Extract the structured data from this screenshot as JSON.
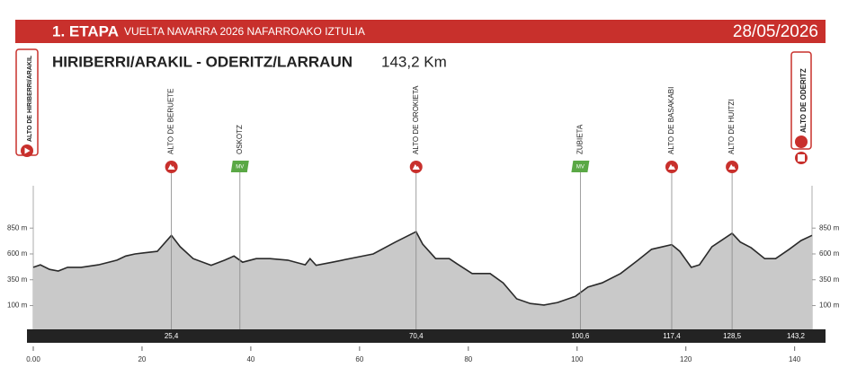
{
  "chart_data": {
    "type": "area",
    "header": {
      "stage": "1. ETAPA",
      "race": "VUELTA NAVARRA 2026 NAFARROAKO IZTULIA",
      "date": "28/05/2026"
    },
    "title": "HIRIBERRI/ARAKIL - ODERITZ/LARRAUN",
    "distance": "143,2 Km",
    "start": {
      "name": "ALTO DE HIRIBERRI/ARAKIL"
    },
    "finish": {
      "name": "ALTO DE ODERITZ",
      "km": 143.2,
      "km_label": "143,2"
    },
    "points": [
      {
        "name": "ALTO DE BERUETE",
        "km": 25.4,
        "km_label": "25,4"
      },
      {
        "name": "OSKOTZ",
        "km": 38,
        "badge": "MV"
      },
      {
        "name": "ALTO DE OROKIETA",
        "km": 70.4,
        "km_label": "70,4"
      },
      {
        "name": "ZUBIETA",
        "km": 100.6,
        "km_label": "100,6",
        "badge": "MV"
      },
      {
        "name": "ALTO DE BASAKABI",
        "km": 117.4,
        "km_label": "117,4"
      },
      {
        "name": "ALTO DE HUITZI",
        "km": 128.5,
        "km_label": "128,5"
      }
    ],
    "x": [
      0,
      1.3,
      3,
      4.6,
      6.3,
      8.8,
      12,
      15.4,
      17,
      18.7,
      20.3,
      22.8,
      25.4,
      27,
      29.4,
      32.7,
      35.2,
      36.9,
      38.5,
      41,
      43.5,
      46.8,
      50,
      50.9,
      52,
      55,
      59.2,
      62.5,
      66.6,
      70.4,
      71.6,
      74,
      76.5,
      78.2,
      80.7,
      84,
      86.4,
      88.9,
      91.4,
      93.9,
      96.4,
      99.7,
      102,
      104.6,
      108,
      111.2,
      113.7,
      117.4,
      118.9,
      121,
      122.5,
      124.8,
      128.5,
      130,
      132,
      134.5,
      136.5,
      139,
      141.2,
      143.2
    ],
    "values": [
      470,
      495,
      450,
      435,
      470,
      470,
      495,
      540,
      580,
      600,
      610,
      625,
      780,
      670,
      555,
      490,
      540,
      580,
      520,
      555,
      555,
      540,
      495,
      555,
      490,
      520,
      565,
      600,
      715,
      815,
      695,
      555,
      555,
      495,
      410,
      410,
      320,
      165,
      120,
      105,
      130,
      190,
      280,
      320,
      410,
      540,
      645,
      690,
      625,
      470,
      495,
      670,
      800,
      715,
      660,
      555,
      555,
      645,
      730,
      780
    ],
    "color": "#c9c9c9",
    "xlim": [
      0,
      143.2
    ],
    "xticks": [
      {
        "value": 0,
        "label": "0.00"
      },
      20,
      40,
      60,
      80,
      100,
      120,
      140
    ],
    "ylim": [
      -130,
      1260
    ],
    "yticks": [
      {
        "value": 100,
        "label": "100 m"
      },
      {
        "value": 350,
        "label": "350 m"
      },
      {
        "value": 600,
        "label": "600 m"
      },
      {
        "value": 850,
        "label": "850 m"
      }
    ]
  }
}
